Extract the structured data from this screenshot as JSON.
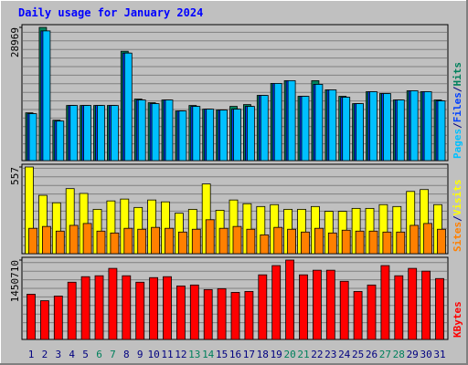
{
  "title": "Daily usage for January 2024",
  "legend_separator": "/",
  "chart_data": [
    {
      "type": "bar",
      "ylim": [
        0,
        28969
      ],
      "yticks": [
        28969
      ],
      "series": [
        {
          "name": "Hits",
          "color": "#00805c",
          "values": [
            10389,
            28969,
            8791,
            11988,
            11988,
            11988,
            11988,
            23775,
            13386,
            12587,
            13186,
            10789,
            11988,
            11188,
            10988,
            11788,
            12187,
            14185,
            16782,
            17382,
            13985,
            17382,
            15384,
            13985,
            12387,
            14984,
            14585,
            13186,
            15184,
            14984,
            13186
          ]
        },
        {
          "name": "Files",
          "color": "#0040ff",
          "values": [
            10200,
            28200,
            8600,
            11988,
            11988,
            11988,
            11988,
            23376,
            13186,
            12387,
            13186,
            10789,
            11788,
            11188,
            10988,
            11188,
            11788,
            14185,
            16782,
            17382,
            13985,
            16583,
            15384,
            13785,
            12387,
            14984,
            14585,
            13186,
            15184,
            14984,
            12987
          ]
        },
        {
          "name": "Pages",
          "color": "#00c0ff",
          "values": [
            10200,
            28200,
            8600,
            11988,
            11988,
            11988,
            11988,
            23376,
            13186,
            12387,
            13186,
            10789,
            11788,
            11188,
            10988,
            11188,
            11788,
            14185,
            16782,
            17382,
            13985,
            16583,
            15384,
            13785,
            12387,
            14984,
            14585,
            13186,
            15184,
            14984,
            12987
          ]
        }
      ]
    },
    {
      "type": "bar",
      "ylim": [
        0,
        557
      ],
      "yticks": [
        557
      ],
      "series": [
        {
          "name": "Visits",
          "color": "#ffff00",
          "values": [
            557,
            375,
            327,
            418,
            387,
            285,
            339,
            351,
            297,
            345,
            333,
            260,
            285,
            448,
            279,
            345,
            321,
            303,
            315,
            285,
            285,
            303,
            272,
            272,
            291,
            291,
            315,
            303,
            400,
            412,
            315
          ]
        },
        {
          "name": "Sites",
          "color": "#ff8000",
          "values": [
            163,
            175,
            145,
            182,
            194,
            145,
            133,
            163,
            157,
            169,
            163,
            139,
            157,
            218,
            163,
            175,
            157,
            121,
            169,
            157,
            139,
            163,
            133,
            151,
            145,
            145,
            139,
            139,
            182,
            194,
            157
          ]
        }
      ]
    },
    {
      "type": "bar",
      "ylim": [
        0,
        1450710
      ],
      "yticks": [
        1450710
      ],
      "categories": [
        1,
        2,
        3,
        4,
        5,
        6,
        7,
        8,
        9,
        10,
        11,
        12,
        13,
        14,
        15,
        16,
        17,
        18,
        19,
        20,
        21,
        22,
        23,
        24,
        25,
        26,
        27,
        28,
        29,
        30,
        31
      ],
      "category_colors": [
        "#000080",
        "#000080",
        "#000080",
        "#000080",
        "#000080",
        "#00805c",
        "#00805c",
        "#000080",
        "#000080",
        "#000080",
        "#000080",
        "#000080",
        "#00805c",
        "#00805c",
        "#000080",
        "#000080",
        "#000080",
        "#000080",
        "#000080",
        "#00805c",
        "#00805c",
        "#000080",
        "#000080",
        "#000080",
        "#000080",
        "#000080",
        "#00805c",
        "#00805c",
        "#000080",
        "#000080",
        "#000080"
      ],
      "series": [
        {
          "name": "KBytes",
          "color": "#ff0000",
          "values": [
            826000,
            708000,
            793000,
            1046000,
            1147000,
            1164000,
            1299000,
            1164000,
            1046000,
            1130000,
            1147000,
            978000,
            995000,
            911000,
            928000,
            860000,
            877000,
            1181000,
            1350000,
            1450710,
            1181000,
            1265000,
            1265000,
            1063000,
            877000,
            995000,
            1350000,
            1164000,
            1299000,
            1248000,
            1113000
          ]
        }
      ]
    }
  ]
}
